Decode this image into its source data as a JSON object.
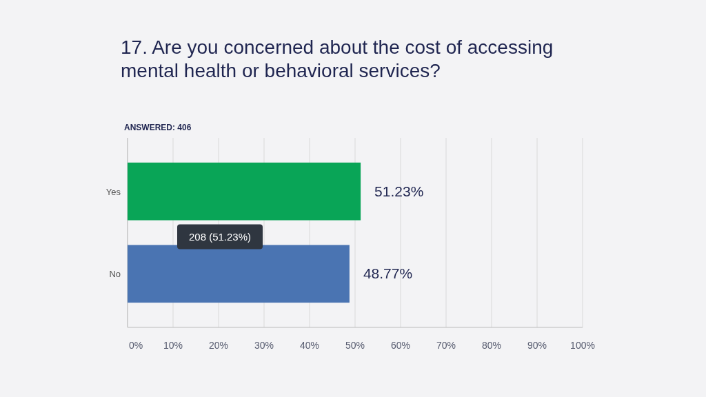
{
  "chart_data": {
    "type": "bar",
    "orientation": "horizontal",
    "title": "17. Are you concerned about the cost of accessing mental health or behavioral services?",
    "subtitle": "ANSWERED: 406",
    "categories": [
      "Yes",
      "No"
    ],
    "values": [
      51.23,
      48.77
    ],
    "colors": [
      "#09a557",
      "#4a74b2"
    ],
    "value_labels": [
      "51.23%",
      "48.77%"
    ],
    "xlim": [
      0,
      100
    ],
    "xticks": [
      {
        "value": 0,
        "label": "0%"
      },
      {
        "value": 10,
        "label": "10%"
      },
      {
        "value": 20,
        "label": "20%"
      },
      {
        "value": 30,
        "label": "30%"
      },
      {
        "value": 40,
        "label": "40%"
      },
      {
        "value": 50,
        "label": "50%"
      },
      {
        "value": 60,
        "label": "60%"
      },
      {
        "value": 70,
        "label": "70%"
      },
      {
        "value": 80,
        "label": "80%"
      },
      {
        "value": 90,
        "label": "90%"
      },
      {
        "value": 100,
        "label": "100%"
      }
    ],
    "grid": "x",
    "annotations": [
      "208 (51.23%)"
    ]
  }
}
